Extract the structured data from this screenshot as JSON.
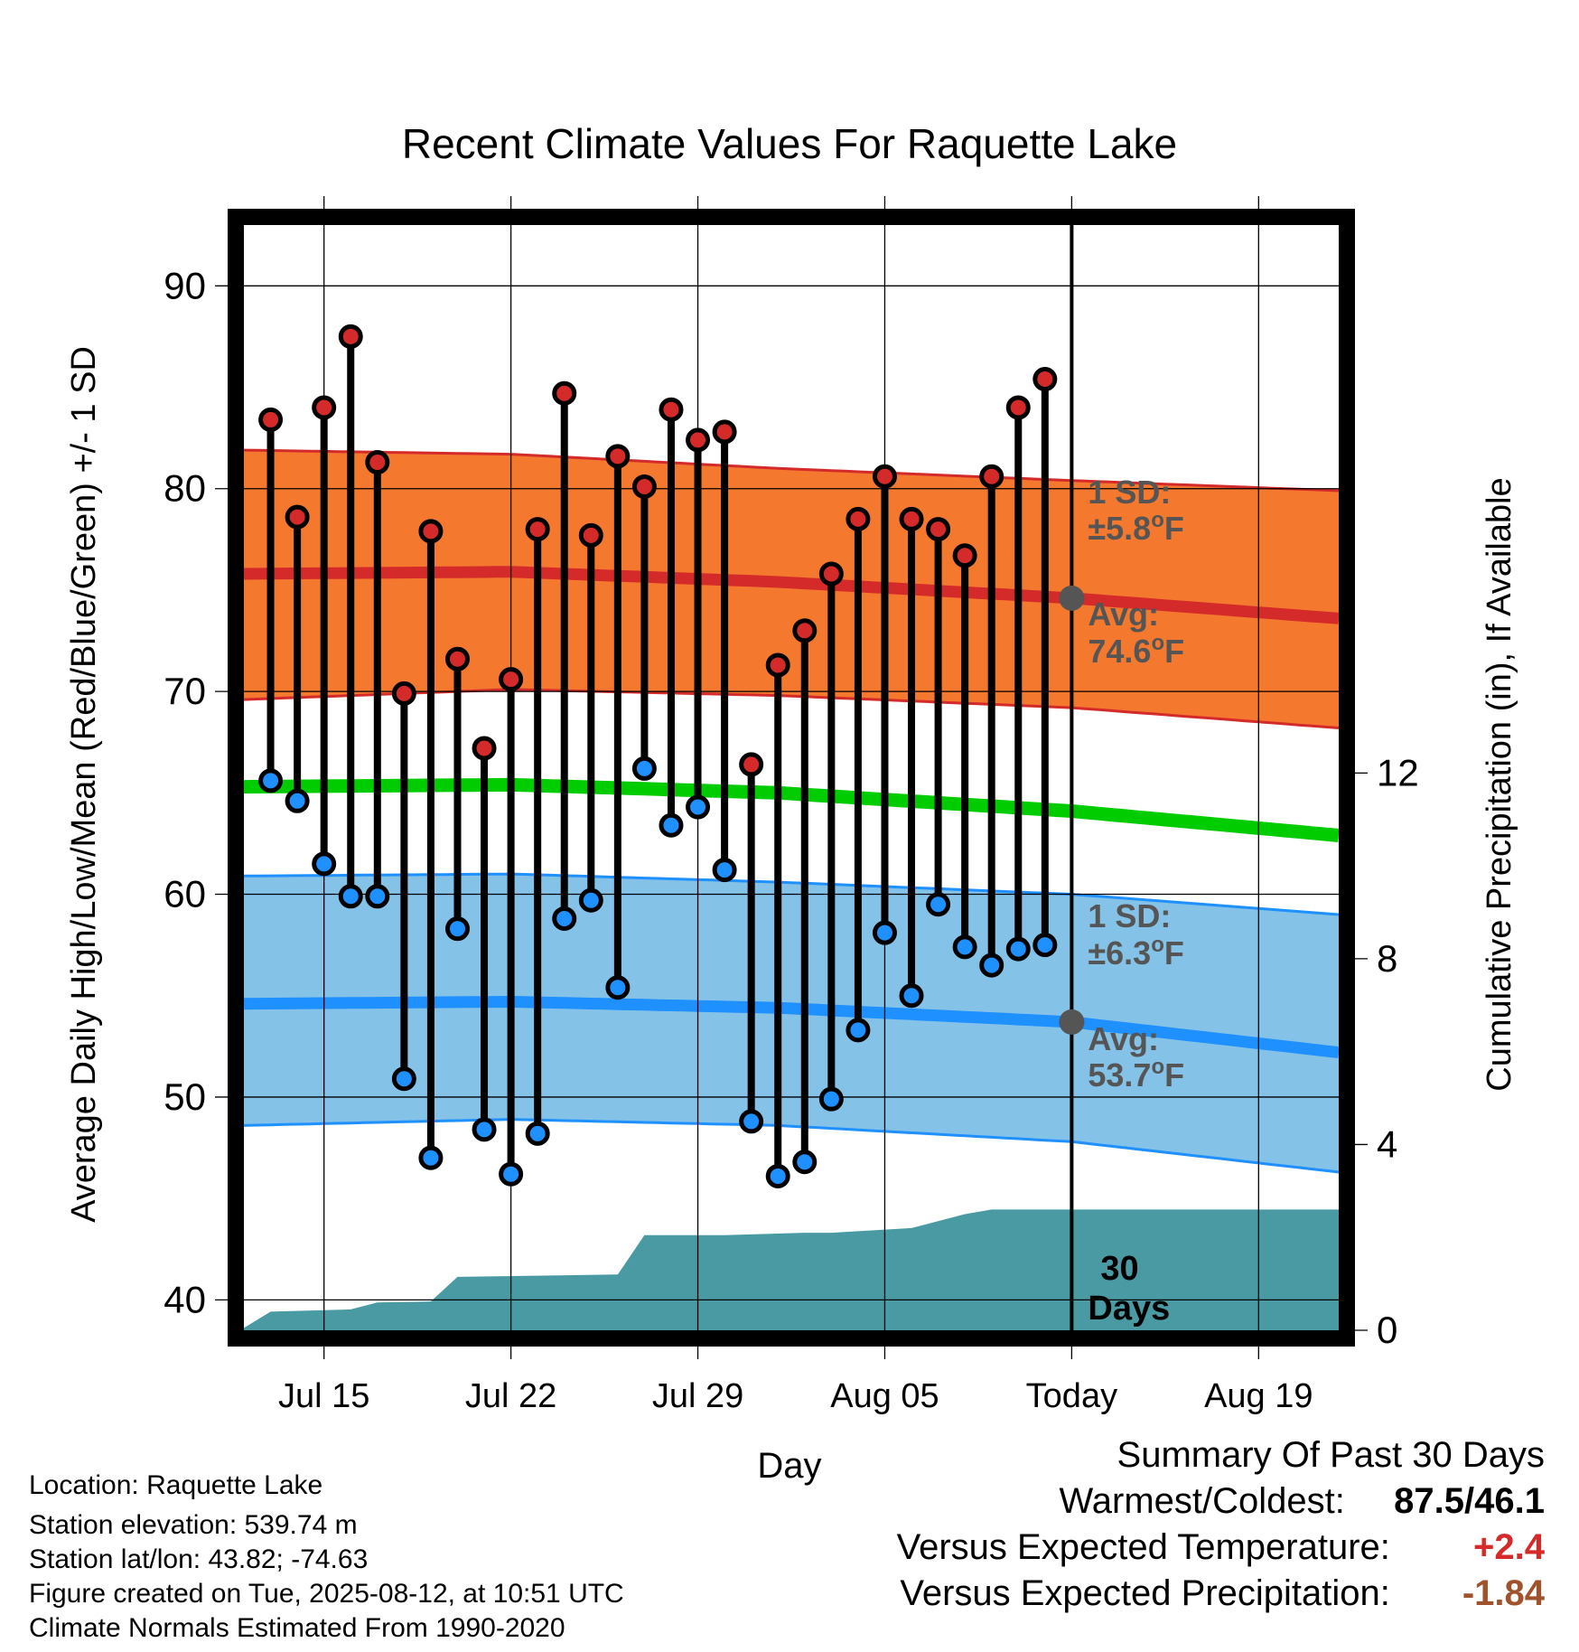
{
  "chart_data": {
    "type": "line",
    "title": "Recent Climate Values For Raquette Lake",
    "xlabel": "Day",
    "ylabel": "Average Daily High/Low/Mean (Red/Blue/Green) +/- 1 SD",
    "y2label": "Cumulative Precipitation (in), If Available",
    "ylim": [
      38.5,
      93
    ],
    "y2lim": [
      0,
      23.8
    ],
    "yticks": [
      40,
      50,
      60,
      70,
      80,
      90
    ],
    "yticks_labels": [
      "40",
      "50",
      "60",
      "70",
      "80",
      "90"
    ],
    "y2ticks": [
      0,
      4,
      8,
      12
    ],
    "y2ticks_labels": [
      "0",
      "4",
      "8",
      "12"
    ],
    "x_start": "2025-07-12",
    "xticks": [
      {
        "date": "2025-07-15",
        "label": "Jul 15"
      },
      {
        "date": "2025-07-22",
        "label": "Jul 22"
      },
      {
        "date": "2025-07-29",
        "label": "Jul 29"
      },
      {
        "date": "2025-08-05",
        "label": "Aug 05"
      },
      {
        "date": "2025-08-12",
        "label": "Today"
      },
      {
        "date": "2025-08-19",
        "label": "Aug 19"
      }
    ],
    "xlim": [
      "2025-07-12",
      "2025-08-22"
    ],
    "today": "2025-08-12",
    "grid": true,
    "dates": [
      "2025-07-13",
      "2025-07-14",
      "2025-07-15",
      "2025-07-16",
      "2025-07-17",
      "2025-07-18",
      "2025-07-19",
      "2025-07-20",
      "2025-07-21",
      "2025-07-22",
      "2025-07-23",
      "2025-07-24",
      "2025-07-25",
      "2025-07-26",
      "2025-07-27",
      "2025-07-28",
      "2025-07-29",
      "2025-07-30",
      "2025-07-31",
      "2025-08-01",
      "2025-08-02",
      "2025-08-03",
      "2025-08-04",
      "2025-08-05",
      "2025-08-06",
      "2025-08-07",
      "2025-08-08",
      "2025-08-09",
      "2025-08-10",
      "2025-08-11"
    ],
    "daily_high": [
      83.4,
      78.6,
      84.0,
      87.5,
      81.3,
      69.9,
      77.9,
      71.6,
      67.2,
      70.6,
      78.0,
      84.7,
      77.7,
      81.6,
      80.1,
      83.9,
      82.4,
      82.8,
      66.4,
      71.3,
      73.0,
      75.8,
      78.5,
      80.6,
      78.5,
      78.0,
      76.7,
      80.6,
      84.0,
      85.4
    ],
    "daily_low": [
      65.6,
      64.6,
      61.5,
      59.9,
      59.9,
      50.9,
      47.0,
      58.3,
      48.4,
      46.2,
      48.2,
      58.8,
      59.7,
      55.4,
      66.2,
      63.4,
      64.3,
      61.2,
      48.8,
      46.1,
      46.8,
      49.9,
      53.3,
      58.1,
      55.0,
      59.5,
      57.4,
      56.5,
      57.3,
      57.5
    ],
    "normal_high": {
      "x": [
        "2025-07-12",
        "2025-07-22",
        "2025-08-01",
        "2025-08-12",
        "2025-08-22"
      ],
      "avg": [
        75.8,
        75.9,
        75.4,
        74.6,
        73.6
      ],
      "upper": [
        81.9,
        81.7,
        81.0,
        80.4,
        79.9
      ],
      "lower": [
        69.6,
        70.1,
        69.8,
        69.2,
        68.2
      ]
    },
    "normal_low": {
      "x": [
        "2025-07-12",
        "2025-07-22",
        "2025-08-01",
        "2025-08-12",
        "2025-08-22"
      ],
      "avg": [
        54.6,
        54.7,
        54.4,
        53.7,
        52.2
      ],
      "upper": [
        60.9,
        61.0,
        60.6,
        60.0,
        59.0
      ],
      "lower": [
        48.6,
        48.9,
        48.6,
        47.8,
        46.3
      ]
    },
    "normal_mean": {
      "x": [
        "2025-07-12",
        "2025-07-22",
        "2025-08-01",
        "2025-08-12",
        "2025-08-22"
      ],
      "values": [
        65.3,
        65.4,
        65.0,
        64.1,
        62.9
      ]
    },
    "precip": {
      "x": [
        "2025-07-12",
        "2025-07-13",
        "2025-07-16",
        "2025-07-17",
        "2025-07-19",
        "2025-07-20",
        "2025-07-26",
        "2025-07-27",
        "2025-07-30",
        "2025-08-02",
        "2025-08-03",
        "2025-08-06",
        "2025-08-08",
        "2025-08-09",
        "2025-08-22"
      ],
      "values": [
        0.05,
        0.4,
        0.45,
        0.6,
        0.62,
        1.15,
        1.2,
        2.05,
        2.05,
        2.1,
        2.1,
        2.2,
        2.5,
        2.6,
        2.6
      ]
    },
    "annotations": {
      "high_sd_line1": "1 SD:",
      "high_sd_line2": "±5.8",
      "high_avg_line1": "Avg:",
      "high_avg_line2": "74.6",
      "low_sd_line1": "1 SD:",
      "low_sd_line2": "±6.3",
      "low_avg_line1": "Avg:",
      "low_avg_line2": "53.7",
      "degree": "o",
      "unit": "F",
      "days_line1": "30",
      "days_line2": "Days"
    },
    "colors": {
      "high_band": "#f4792f",
      "high_line": "#d42a2a",
      "low_band": "#85c2e8",
      "low_line": "#1e90ff",
      "mean_line": "#00cc00",
      "precip": "#4a9aa3",
      "high_dot": "#d42a2a",
      "low_dot": "#1e90ff",
      "avg_marker": "#555555",
      "annotation": "#555555"
    }
  },
  "info": {
    "location": "Location: Raquette Lake",
    "elevation": "Station elevation: 539.74 m",
    "latlon": "Station lat/lon: 43.82; -74.63",
    "created": "Figure created on Tue, 2025-08-12, at 10:51 UTC",
    "normals": "Climate Normals Estimated From 1990-2020"
  },
  "summary": {
    "title": "Summary Of Past 30 Days",
    "warmest_label": "Warmest/Coldest:",
    "warmest_value": "87.5/46.1",
    "temp_label": "Versus Expected Temperature:",
    "temp_value": "+2.4",
    "precip_label": "Versus Expected Precipitation:",
    "precip_value": "-1.84",
    "temp_color": "#d42a2a",
    "precip_color": "#a0522d"
  }
}
